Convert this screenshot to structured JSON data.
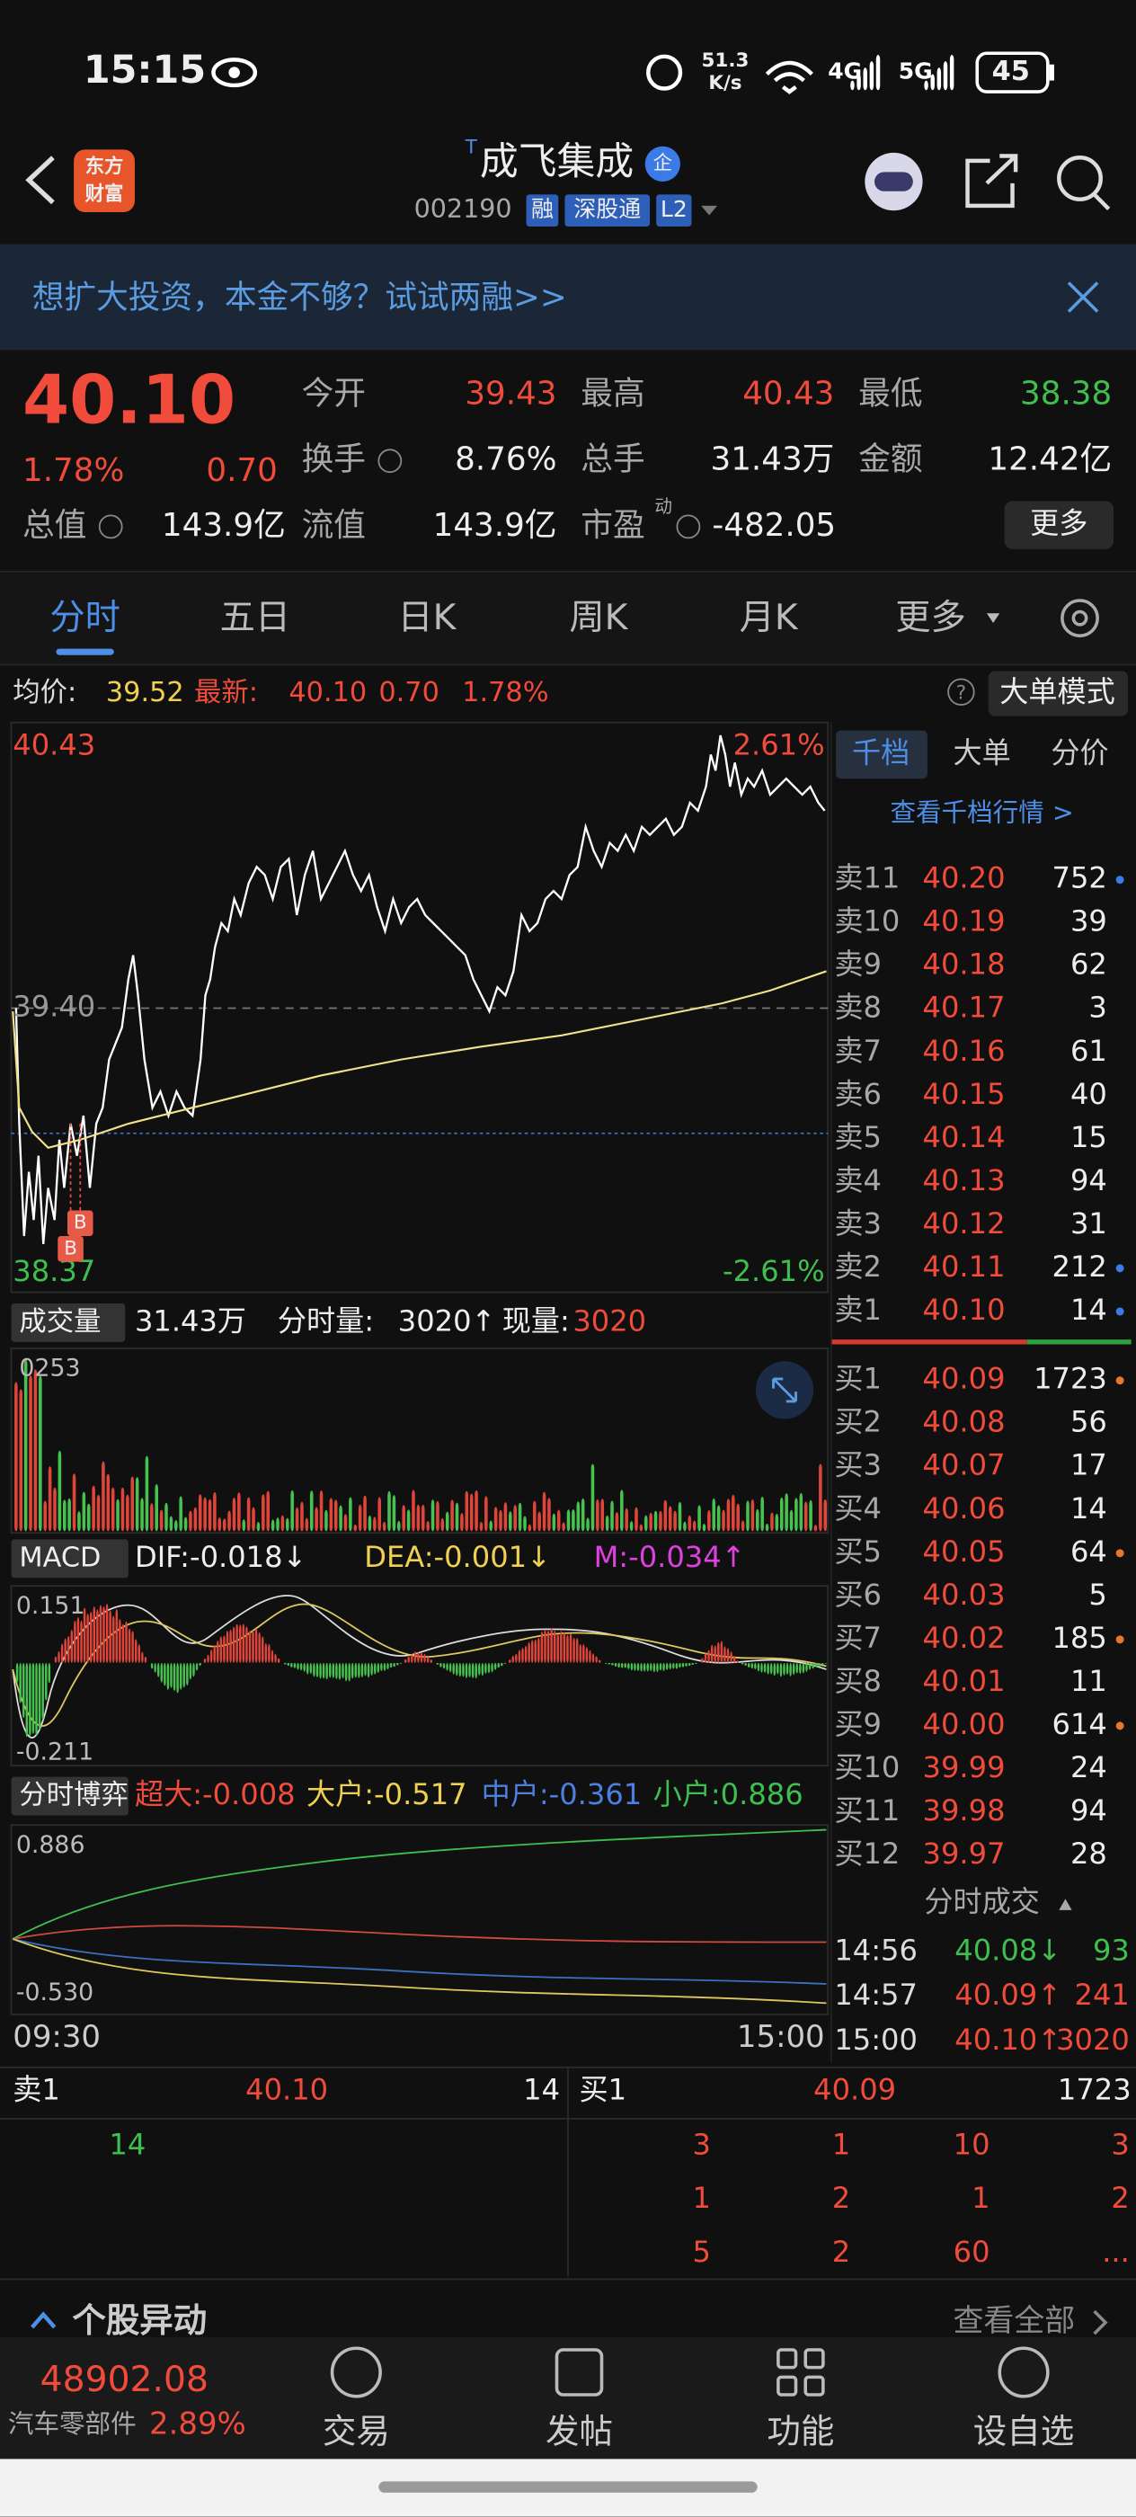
{
  "status_bar": {
    "time": "15:15",
    "net_speed": "51.3",
    "net_unit": "K/s",
    "battery": "45"
  },
  "header": {
    "brand": [
      "东方",
      "财富"
    ],
    "superscript": "T",
    "title": "成飞集成",
    "badge": "企",
    "code": "002190",
    "tags": [
      "融",
      "深股通",
      "L2"
    ]
  },
  "banner": {
    "text": "想扩大投资，本金不够？试试两融>>"
  },
  "quote": {
    "price": "40.10",
    "percent": "1.78%",
    "change": "0.70",
    "more": "更多",
    "fields": [
      {
        "label": "今开",
        "value": "39.43",
        "color": "#f04b3b"
      },
      {
        "label": "最高",
        "value": "40.43",
        "color": "#f04b3b"
      },
      {
        "label": "最低",
        "value": "38.38",
        "color": "#3fbf4f"
      },
      {
        "label": "换手",
        "value": "8.76%",
        "color": "#eeeeee"
      },
      {
        "label": "总手",
        "value": "31.43万",
        "color": "#eeeeee"
      },
      {
        "label": "金额",
        "value": "12.42亿",
        "color": "#eeeeee"
      },
      {
        "label": "总值",
        "value": "143.9亿",
        "color": "#eeeeee"
      },
      {
        "label": "流值",
        "value": "143.9亿",
        "color": "#eeeeee"
      },
      {
        "label": "市盈",
        "superscript": "动",
        "value": "-482.05",
        "color": "#eeeeee"
      }
    ]
  },
  "tabs": {
    "items": [
      "分时",
      "五日",
      "日K",
      "周K",
      "月K",
      "更多"
    ],
    "active": 0
  },
  "intraday": {
    "avg_label": "均价:",
    "avg_value": "39.52",
    "latest_label": "最新:",
    "latest_price": "40.10",
    "latest_change": "0.70",
    "latest_percent": "1.78%",
    "mode_button": "大单模式",
    "axis": {
      "high": "40.43",
      "mid": "39.40",
      "low": "38.37",
      "pct_high": "2.61%",
      "pct_low": "-2.61%"
    },
    "markers": [
      "B",
      "B"
    ]
  },
  "volume": {
    "label": "成交量",
    "total": "31.43万",
    "period_label": "分时量:",
    "period_value": "3020↑",
    "now_label": "现量:",
    "now_value": "3020",
    "axis_top": "0253"
  },
  "macd": {
    "label": "MACD",
    "dif": "DIF:-0.018↓",
    "dea": "DEA:-0.001↓",
    "m": "M:-0.034↑",
    "axis_top": "0.151",
    "axis_bottom": "-0.211"
  },
  "game": {
    "label": "分时博弈",
    "super": "超大:-0.008",
    "large": "大户:-0.517",
    "medium": "中户:-0.361",
    "small": "小户:0.886",
    "axis_top": "0.886",
    "axis_bottom": "-0.530",
    "start": "09:30",
    "end": "15:00"
  },
  "order_book": {
    "tabs": [
      "千档",
      "大单",
      "分价"
    ],
    "link": "查看千档行情 >",
    "asks": [
      {
        "label": "卖11",
        "price": "40.20",
        "qty": "752",
        "dot": "#3b7be8"
      },
      {
        "label": "卖10",
        "price": "40.19",
        "qty": "39"
      },
      {
        "label": "卖9",
        "price": "40.18",
        "qty": "62"
      },
      {
        "label": "卖8",
        "price": "40.17",
        "qty": "3"
      },
      {
        "label": "卖7",
        "price": "40.16",
        "qty": "61"
      },
      {
        "label": "卖6",
        "price": "40.15",
        "qty": "40"
      },
      {
        "label": "卖5",
        "price": "40.14",
        "qty": "15"
      },
      {
        "label": "卖4",
        "price": "40.13",
        "qty": "94"
      },
      {
        "label": "卖3",
        "price": "40.12",
        "qty": "31"
      },
      {
        "label": "卖2",
        "price": "40.11",
        "qty": "212",
        "dot": "#3b7be8"
      },
      {
        "label": "卖1",
        "price": "40.10",
        "qty": "14",
        "dot": "#3b7be8"
      }
    ],
    "bids": [
      {
        "label": "买1",
        "price": "40.09",
        "qty": "1723",
        "dot": "#e8772e"
      },
      {
        "label": "买2",
        "price": "40.08",
        "qty": "56"
      },
      {
        "label": "买3",
        "price": "40.07",
        "qty": "17"
      },
      {
        "label": "买4",
        "price": "40.06",
        "qty": "14"
      },
      {
        "label": "买5",
        "price": "40.05",
        "qty": "64",
        "dot": "#e8772e"
      },
      {
        "label": "买6",
        "price": "40.03",
        "qty": "5"
      },
      {
        "label": "买7",
        "price": "40.02",
        "qty": "185",
        "dot": "#e8772e"
      },
      {
        "label": "买8",
        "price": "40.01",
        "qty": "11"
      },
      {
        "label": "买9",
        "price": "40.00",
        "qty": "614",
        "dot": "#e8772e"
      },
      {
        "label": "买10",
        "price": "39.99",
        "qty": "24"
      },
      {
        "label": "买11",
        "price": "39.98",
        "qty": "94"
      },
      {
        "label": "买12",
        "price": "39.97",
        "qty": "28"
      }
    ],
    "trades_title": "分时成交",
    "trades": [
      {
        "time": "14:56",
        "price": "40.08↓",
        "qty": "93",
        "color": "#3fbf4f"
      },
      {
        "time": "14:57",
        "price": "40.09↑",
        "qty": "241",
        "color": "#f04b3b"
      },
      {
        "time": "15:00",
        "price": "40.10↑",
        "qty": "3020",
        "color": "#f04b3b"
      }
    ]
  },
  "level_bar": {
    "ask_label": "卖1",
    "ask_price": "40.10",
    "ask_qty": "14",
    "bid_label": "买1",
    "bid_price": "40.09",
    "bid_qty": "1723",
    "ask_detail": "14",
    "bid_detail": [
      [
        "3",
        "1",
        "10",
        "3"
      ],
      [
        "1",
        "2",
        "1",
        "2"
      ],
      [
        "5",
        "2",
        "60",
        "..."
      ]
    ]
  },
  "section": {
    "title": "个股异动",
    "link": "查看全部"
  },
  "bottom_nav": {
    "index_value": "48902.08",
    "index_name": "汽车零部件",
    "index_change": "2.89%",
    "items": [
      "交易",
      "发帖",
      "功能",
      "设自选"
    ]
  }
}
